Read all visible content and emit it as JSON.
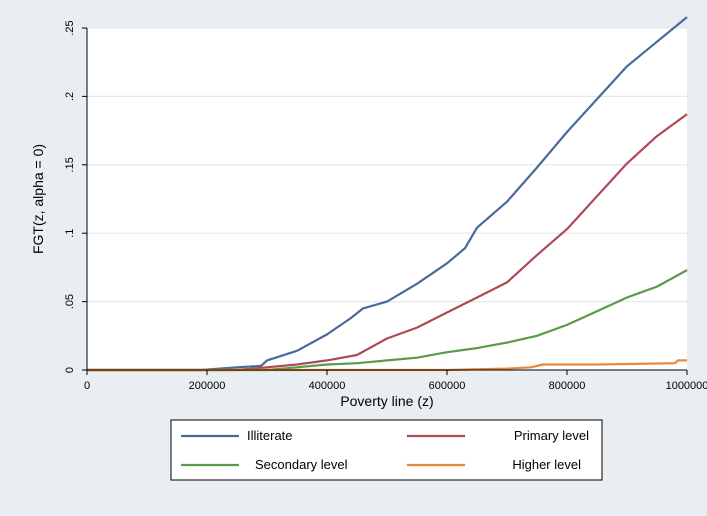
{
  "chart_data": {
    "type": "line",
    "title": "",
    "xlabel": "Poverty line (z)",
    "ylabel": "FGT(z, alpha = 0)",
    "xlim": [
      0,
      1000000
    ],
    "ylim": [
      0,
      0.25
    ],
    "xticks": [
      0,
      200000,
      400000,
      600000,
      800000,
      1000000
    ],
    "xtick_labels": [
      "0",
      "200000",
      "400000",
      "600000",
      "800000",
      "1000000"
    ],
    "yticks": [
      0,
      0.05,
      0.1,
      0.15,
      0.2,
      0.25
    ],
    "ytick_labels": [
      "0",
      ".05",
      ".1",
      ".15",
      ".2",
      ".25"
    ],
    "grid": true,
    "legend_position": "bottom",
    "series": [
      {
        "name": "Illiterate",
        "color": "#4a6a9a",
        "x": [
          0,
          190000,
          250000,
          290000,
          300000,
          350000,
          400000,
          440000,
          460000,
          500000,
          550000,
          600000,
          630000,
          650000,
          700000,
          750000,
          800000,
          850000,
          900000,
          950000,
          1000000
        ],
        "y": [
          0,
          0,
          0.002,
          0.003,
          0.007,
          0.014,
          0.026,
          0.038,
          0.045,
          0.05,
          0.063,
          0.078,
          0.089,
          0.104,
          0.123,
          0.148,
          0.174,
          0.198,
          0.222,
          0.24,
          0.258
        ]
      },
      {
        "name": "Primary level",
        "color": "#b04a52",
        "x": [
          0,
          250000,
          300000,
          350000,
          400000,
          450000,
          500000,
          550000,
          600000,
          650000,
          700000,
          750000,
          800000,
          850000,
          900000,
          950000,
          1000000
        ],
        "y": [
          0,
          0,
          0.002,
          0.004,
          0.007,
          0.011,
          0.023,
          0.031,
          0.042,
          0.053,
          0.064,
          0.084,
          0.103,
          0.127,
          0.151,
          0.171,
          0.187
        ]
      },
      {
        "name": "Secondary level",
        "color": "#5a9a4a",
        "x": [
          0,
          300000,
          350000,
          400000,
          450000,
          500000,
          550000,
          600000,
          650000,
          700000,
          750000,
          800000,
          850000,
          900000,
          950000,
          1000000
        ],
        "y": [
          0,
          0,
          0.002,
          0.004,
          0.005,
          0.007,
          0.009,
          0.013,
          0.016,
          0.02,
          0.025,
          0.033,
          0.043,
          0.053,
          0.061,
          0.073
        ]
      },
      {
        "name": "Higher level",
        "color": "#e8883a",
        "x": [
          0,
          500000,
          600000,
          700000,
          740000,
          760000,
          850000,
          980000,
          985000,
          1000000
        ],
        "y": [
          0,
          0,
          0,
          0.001,
          0.002,
          0.004,
          0.004,
          0.005,
          0.007,
          0.007
        ]
      }
    ]
  }
}
